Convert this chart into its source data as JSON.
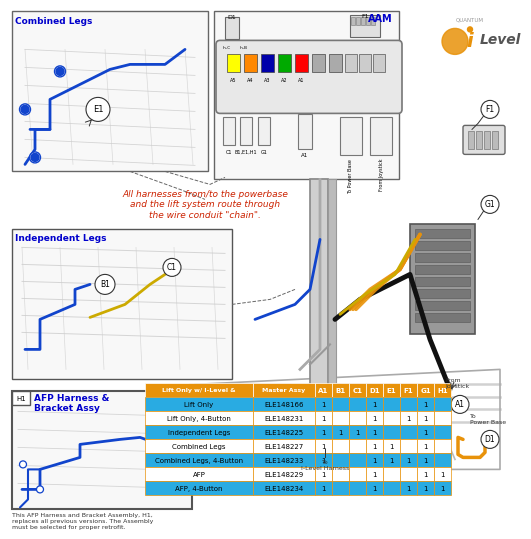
{
  "table_header": [
    "Lift Only w/ I-Level &",
    "Master Assy",
    "A1",
    "B1",
    "C1",
    "D1",
    "E1",
    "F1",
    "G1",
    "H1"
  ],
  "table_rows": [
    [
      "Lift Only",
      "ELE148166",
      "1",
      "",
      "",
      "1",
      "",
      "",
      "1",
      ""
    ],
    [
      "Lift Only, 4-Button",
      "ELE148231",
      "1",
      "",
      "",
      "1",
      "",
      "1",
      "1",
      ""
    ],
    [
      "Independent Legs",
      "ELE148225",
      "1",
      "1",
      "1",
      "1",
      "",
      "",
      "1",
      ""
    ],
    [
      "Combined Legs",
      "ELE148227",
      "1",
      "",
      "",
      "1",
      "1",
      "",
      "1",
      ""
    ],
    [
      "Combined Legs, 4-Button",
      "ELE148233",
      "1",
      "",
      "",
      "1",
      "1",
      "1",
      "1",
      ""
    ],
    [
      "AFP",
      "ELE148229",
      "1",
      "",
      "",
      "1",
      "",
      "",
      "1",
      "1"
    ],
    [
      "AFP, 4-Button",
      "ELE148234",
      "1",
      "",
      "",
      "1",
      "",
      "1",
      "1",
      "1"
    ]
  ],
  "row_highlight": [
    true,
    false,
    true,
    false,
    true,
    false,
    true
  ],
  "header_bg": "#E8920A",
  "row_bg_highlight": "#29ABE2",
  "row_bg_normal": "#FFFFFF",
  "border_color": "#E8920A",
  "annotation_text": "All harnesses from/to the powerbase\nand the lift system route through\nthe wire conduit \"chain\".",
  "annotation_color": "#CC2200",
  "label_combined": "Combined Legs",
  "label_independent": "Independent Legs",
  "label_afp_title": "AFP Harness &\nBracket Assy",
  "label_afp_note": "This AFP Harness and Bracket Assembly, H1,\nreplaces all previous versions. The Assembly\nmust be selected for proper retrofit.",
  "label_aam": "AAM",
  "bg_color": "#FFFFFF",
  "ilevel_orange": "#E8920A",
  "ilevel_gray": "#888888",
  "blue_label": "#0000CC",
  "frame_color": "#AAAAAA",
  "cable_blue": "#1144CC",
  "cable_orange": "#E8920A",
  "cable_yellow": "#CCAA00",
  "cable_black": "#111111"
}
